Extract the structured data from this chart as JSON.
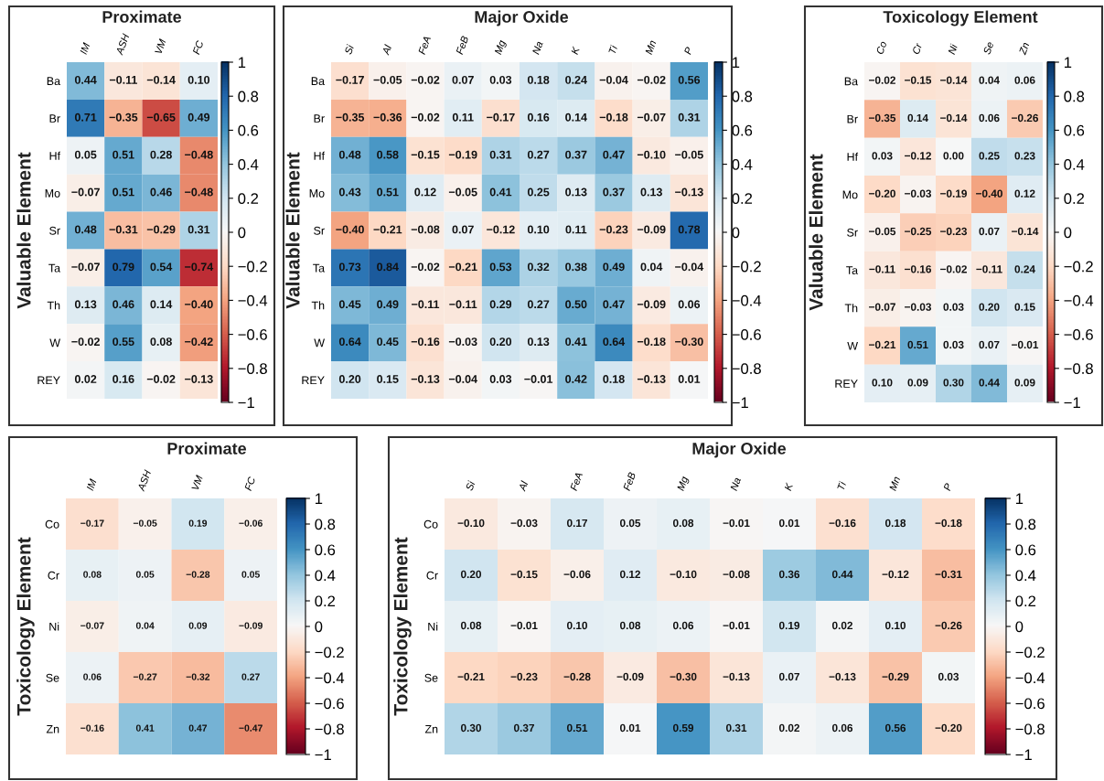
{
  "chart_data": [
    {
      "type": "heatmap",
      "title": "Proximate",
      "ylabel": "Valuable Element",
      "categories": [
        "IM",
        "ASH",
        "VM",
        "FC"
      ],
      "y_categories": [
        "Ba",
        "Br",
        "Hf",
        "Mo",
        "Sr",
        "Ta",
        "Th",
        "W",
        "REY"
      ],
      "cells": [
        [
          0.44,
          -0.11,
          -0.14,
          0.1
        ],
        [
          0.71,
          -0.35,
          -0.65,
          0.49
        ],
        [
          0.05,
          0.51,
          0.28,
          -0.48
        ],
        [
          -0.07,
          0.51,
          0.46,
          -0.48
        ],
        [
          0.48,
          -0.31,
          -0.29,
          0.31
        ],
        [
          -0.07,
          0.79,
          0.54,
          -0.74
        ],
        [
          0.13,
          0.46,
          0.14,
          -0.4
        ],
        [
          -0.02,
          0.55,
          0.08,
          -0.42
        ],
        [
          0.02,
          0.16,
          -0.02,
          -0.13
        ]
      ],
      "cell_labels": [
        [
          "0.44",
          "−0.11",
          "−0.14",
          "0.10"
        ],
        [
          "0.71",
          "−0.35",
          "−0.65",
          "0.49"
        ],
        [
          "0.05",
          "0.51",
          "0.28",
          "−0.48"
        ],
        [
          "−0.07",
          "0.51",
          "0.46",
          "−0.48"
        ],
        [
          "0.48",
          "−0.31",
          "−0.29",
          "0.31"
        ],
        [
          "−0.07",
          "0.79",
          "0.54",
          "−0.74"
        ],
        [
          "0.13",
          "0.46",
          "0.14",
          "−0.40"
        ],
        [
          "−0.02",
          "0.55",
          "0.08",
          "−0.42"
        ],
        [
          "0.02",
          "0.16",
          "−0.02",
          "−0.13"
        ]
      ],
      "clim": [
        -1,
        1
      ],
      "cticks": [
        {
          "value": -1,
          "label": "−1"
        },
        {
          "value": -0.8,
          "label": "−0.8"
        },
        {
          "value": -0.6,
          "label": "−0.6"
        },
        {
          "value": -0.4,
          "label": "−0.4"
        },
        {
          "value": -0.2,
          "label": "−0.2"
        },
        0,
        0.2,
        0.4,
        0.6,
        0.8,
        1
      ]
    },
    {
      "type": "heatmap",
      "title": "Major Oxide",
      "ylabel": "Valuable Element",
      "categories": [
        "Si",
        "Al",
        "FeA",
        "FeB",
        "Mg",
        "Na",
        "K",
        "Ti",
        "Mn",
        "P"
      ],
      "y_categories": [
        "Ba",
        "Br",
        "Hf",
        "Mo",
        "Sr",
        "Ta",
        "Th",
        "W",
        "REY"
      ],
      "cells": [
        [
          -0.17,
          -0.05,
          -0.02,
          0.07,
          0.03,
          0.18,
          0.24,
          -0.04,
          -0.02,
          0.56
        ],
        [
          -0.35,
          -0.36,
          -0.02,
          0.11,
          -0.17,
          0.16,
          0.14,
          -0.18,
          -0.07,
          0.31
        ],
        [
          0.48,
          0.58,
          -0.15,
          -0.19,
          0.31,
          0.27,
          0.37,
          0.47,
          -0.1,
          -0.05
        ],
        [
          0.43,
          0.51,
          0.12,
          -0.05,
          0.41,
          0.25,
          0.13,
          0.37,
          0.13,
          -0.13
        ],
        [
          -0.4,
          -0.21,
          -0.08,
          0.07,
          -0.12,
          0.1,
          0.11,
          -0.23,
          -0.09,
          0.78
        ],
        [
          0.73,
          0.84,
          -0.02,
          -0.21,
          0.53,
          0.32,
          0.38,
          0.49,
          0.04,
          -0.04
        ],
        [
          0.45,
          0.49,
          -0.11,
          -0.11,
          0.29,
          0.27,
          0.5,
          0.47,
          -0.09,
          0.06
        ],
        [
          0.64,
          0.45,
          -0.16,
          -0.03,
          0.2,
          0.13,
          0.41,
          0.64,
          -0.18,
          -0.3
        ],
        [
          0.2,
          0.15,
          -0.13,
          -0.04,
          0.03,
          -0.01,
          0.42,
          0.18,
          -0.13,
          0.01
        ]
      ],
      "cell_labels": [
        [
          "−0.17",
          "−0.05",
          "−0.02",
          "0.07",
          "0.03",
          "0.18",
          "0.24",
          "−0.04",
          "−0.02",
          "0.56"
        ],
        [
          "−0.35",
          "−0.36",
          "−0.02",
          "0.11",
          "−0.17",
          "0.16",
          "0.14",
          "−0.18",
          "−0.07",
          "0.31"
        ],
        [
          "0.48",
          "0.58",
          "−0.15",
          "−0.19",
          "0.31",
          "0.27",
          "0.37",
          "0.47",
          "−0.10",
          "−0.05"
        ],
        [
          "0.43",
          "0.51",
          "0.12",
          "−0.05",
          "0.41",
          "0.25",
          "0.13",
          "0.37",
          "0.13",
          "−0.13"
        ],
        [
          "−0.40",
          "−0.21",
          "−0.08",
          "0.07",
          "−0.12",
          "0.10",
          "0.11",
          "−0.23",
          "−0.09",
          "0.78"
        ],
        [
          "0.73",
          "0.84",
          "−0.02",
          "−0.21",
          "0.53",
          "0.32",
          "0.38",
          "0.49",
          "0.04",
          "−0.04"
        ],
        [
          "0.45",
          "0.49",
          "−0.11",
          "−0.11",
          "0.29",
          "0.27",
          "0.50",
          "0.47",
          "−0.09",
          "0.06"
        ],
        [
          "0.64",
          "0.45",
          "−0.16",
          "−0.03",
          "0.20",
          "0.13",
          "0.41",
          "0.64",
          "−0.18",
          "−0.30"
        ],
        [
          "0.20",
          "0.15",
          "−0.13",
          "−0.04",
          "0.03",
          "−0.01",
          "0.42",
          "0.18",
          "−0.13",
          "0.01"
        ]
      ],
      "clim": [
        -1,
        1
      ],
      "cticks": [
        {
          "value": -1,
          "label": "−1"
        },
        {
          "value": -0.8,
          "label": "−0.8"
        },
        {
          "value": -0.6,
          "label": "−0.6"
        },
        {
          "value": -0.4,
          "label": "−0.4"
        },
        {
          "value": -0.2,
          "label": "−0.2"
        },
        0,
        0.2,
        0.4,
        0.6,
        0.8,
        1
      ]
    },
    {
      "type": "heatmap",
      "title": "Toxicology Element",
      "ylabel": "Valuable Element",
      "categories": [
        "Co",
        "Cr",
        "Ni",
        "Se",
        "Zn"
      ],
      "y_categories": [
        "Ba",
        "Br",
        "Hf",
        "Mo",
        "Sr",
        "Ta",
        "Th",
        "W",
        "REY"
      ],
      "cells": [
        [
          -0.02,
          -0.15,
          -0.14,
          0.04,
          0.06
        ],
        [
          -0.35,
          0.14,
          -0.14,
          0.06,
          -0.26
        ],
        [
          0.03,
          -0.12,
          0.0,
          0.25,
          0.23
        ],
        [
          -0.2,
          -0.03,
          -0.19,
          -0.4,
          0.12
        ],
        [
          -0.05,
          -0.25,
          -0.23,
          0.07,
          -0.14
        ],
        [
          -0.11,
          -0.16,
          -0.02,
          -0.11,
          0.24
        ],
        [
          -0.07,
          -0.03,
          0.03,
          0.2,
          0.15
        ],
        [
          -0.21,
          0.51,
          0.03,
          0.07,
          -0.01
        ],
        [
          0.1,
          0.09,
          0.3,
          0.44,
          0.09
        ]
      ],
      "cell_labels": [
        [
          "−0.02",
          "−0.15",
          "−0.14",
          "0.04",
          "0.06"
        ],
        [
          "−0.35",
          "0.14",
          "−0.14",
          "0.06",
          "−0.26"
        ],
        [
          "0.03",
          "−0.12",
          "0.00",
          "0.25",
          "0.23"
        ],
        [
          "−0.20",
          "−0.03",
          "−0.19",
          "−0.40",
          "0.12"
        ],
        [
          "−0.05",
          "−0.25",
          "−0.23",
          "0.07",
          "−0.14"
        ],
        [
          "−0.11",
          "−0.16",
          "−0.02",
          "−0.11",
          "0.24"
        ],
        [
          "−0.07",
          "−0.03",
          "0.03",
          "0.20",
          "0.15"
        ],
        [
          "−0.21",
          "0.51",
          "0.03",
          "0.07",
          "−0.01"
        ],
        [
          "0.10",
          "0.09",
          "0.30",
          "0.44",
          "0.09"
        ]
      ],
      "clim": [
        -1,
        1
      ],
      "cticks": [
        {
          "value": -1,
          "label": "−1"
        },
        {
          "value": -0.8,
          "label": "−0.8"
        },
        {
          "value": -0.6,
          "label": "−0.6"
        },
        {
          "value": -0.4,
          "label": "−0.4"
        },
        {
          "value": -0.2,
          "label": "−0.2"
        },
        0,
        0.2,
        0.4,
        0.6,
        0.8,
        1
      ]
    },
    {
      "type": "heatmap",
      "title": "Proximate",
      "ylabel": "Toxicology Element",
      "categories": [
        "IM",
        "ASH",
        "VM",
        "FC"
      ],
      "y_categories": [
        "Co",
        "Cr",
        "Ni",
        "Se",
        "Zn"
      ],
      "cells": [
        [
          -0.17,
          -0.05,
          0.19,
          -0.06
        ],
        [
          0.08,
          0.05,
          -0.28,
          0.05
        ],
        [
          -0.07,
          0.04,
          0.09,
          -0.09
        ],
        [
          0.06,
          -0.27,
          -0.32,
          0.27
        ],
        [
          -0.16,
          0.41,
          0.47,
          -0.47
        ]
      ],
      "cell_labels": [
        [
          "−0.17",
          "−0.05",
          "0.19",
          "−0.06"
        ],
        [
          "0.08",
          "0.05",
          "−0.28",
          "0.05"
        ],
        [
          "−0.07",
          "0.04",
          "0.09",
          "−0.09"
        ],
        [
          "0.06",
          "−0.27",
          "−0.32",
          "0.27"
        ],
        [
          "−0.16",
          "0.41",
          "0.47",
          "−0.47"
        ]
      ],
      "clim": [
        -1,
        1
      ],
      "cticks": [
        {
          "value": -1,
          "label": "−1"
        },
        {
          "value": -0.8,
          "label": "−0.8"
        },
        {
          "value": -0.6,
          "label": "−0.6"
        },
        {
          "value": -0.4,
          "label": "−0.4"
        },
        {
          "value": -0.2,
          "label": "−0.2"
        },
        0,
        0.2,
        0.4,
        0.6,
        0.8,
        1
      ]
    },
    {
      "type": "heatmap",
      "title": "Major Oxide",
      "ylabel": "Toxicology Element",
      "categories": [
        "Si",
        "Al",
        "FeA",
        "FeB",
        "Mg",
        "Na",
        "K",
        "Ti",
        "Mn",
        "P"
      ],
      "y_categories": [
        "Co",
        "Cr",
        "Ni",
        "Se",
        "Zn"
      ],
      "cells": [
        [
          -0.1,
          -0.03,
          0.17,
          0.05,
          0.08,
          -0.01,
          0.01,
          -0.16,
          0.18,
          -0.18
        ],
        [
          0.2,
          -0.15,
          -0.06,
          0.12,
          -0.1,
          -0.08,
          0.36,
          0.44,
          -0.12,
          -0.31
        ],
        [
          0.08,
          -0.01,
          0.1,
          0.08,
          0.06,
          -0.01,
          0.19,
          0.02,
          0.1,
          -0.26
        ],
        [
          -0.21,
          -0.23,
          -0.28,
          -0.09,
          -0.3,
          -0.13,
          0.07,
          -0.13,
          -0.29,
          0.03
        ],
        [
          0.3,
          0.37,
          0.51,
          0.01,
          0.59,
          0.31,
          0.02,
          0.06,
          0.56,
          -0.2
        ]
      ],
      "cell_labels": [
        [
          "−0.10",
          "−0.03",
          "0.17",
          "0.05",
          "0.08",
          "−0.01",
          "0.01",
          "−0.16",
          "0.18",
          "−0.18"
        ],
        [
          "0.20",
          "−0.15",
          "−0.06",
          "0.12",
          "−0.10",
          "−0.08",
          "0.36",
          "0.44",
          "−0.12",
          "−0.31"
        ],
        [
          "0.08",
          "−0.01",
          "0.10",
          "0.08",
          "0.06",
          "−0.01",
          "0.19",
          "0.02",
          "0.10",
          "−0.26"
        ],
        [
          "−0.21",
          "−0.23",
          "−0.28",
          "−0.09",
          "−0.30",
          "−0.13",
          "0.07",
          "−0.13",
          "−0.29",
          "0.03"
        ],
        [
          "0.30",
          "0.37",
          "0.51",
          "0.01",
          "0.59",
          "0.31",
          "0.02",
          "0.06",
          "0.56",
          "−0.20"
        ]
      ],
      "clim": [
        -1,
        1
      ],
      "cticks": [
        {
          "value": -1,
          "label": "−1"
        },
        {
          "value": -0.8,
          "label": "−0.8"
        },
        {
          "value": -0.6,
          "label": "−0.6"
        },
        {
          "value": -0.4,
          "label": "−0.4"
        },
        {
          "value": -0.2,
          "label": "−0.2"
        },
        0,
        0.2,
        0.4,
        0.6,
        0.8,
        1
      ]
    }
  ]
}
